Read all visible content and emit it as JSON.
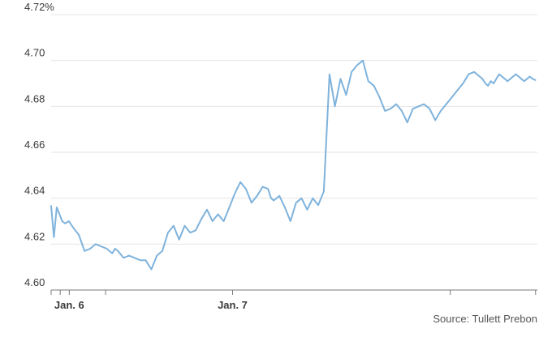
{
  "chart_data": {
    "type": "line",
    "title": "",
    "xlabel": "",
    "ylabel": "",
    "ylim": [
      4.6,
      4.72
    ],
    "yticks": [
      4.6,
      4.62,
      4.64,
      4.66,
      4.68,
      4.7,
      4.72
    ],
    "ytick_labels": [
      "4.60",
      "4.62",
      "4.64",
      "4.66",
      "4.68",
      "4.70",
      "4.72%"
    ],
    "xticks": [
      {
        "label": "Jan. 6",
        "value": 0.1
      },
      {
        "label": "Jan. 7",
        "value": 1.0
      }
    ],
    "xlim": [
      0,
      2.68
    ],
    "grid": true,
    "source": "Source: Tullett Prebon",
    "series_color": "#7fb3dc",
    "series": [
      {
        "x": [
          0.0,
          0.015,
          0.031,
          0.046,
          0.061,
          0.077,
          0.098,
          0.123,
          0.153,
          0.184,
          0.215,
          0.245,
          0.276,
          0.307,
          0.337,
          0.352,
          0.368,
          0.399,
          0.429,
          0.46,
          0.491,
          0.521,
          0.552,
          0.583,
          0.613,
          0.644,
          0.675,
          0.705,
          0.736,
          0.767,
          0.797,
          0.828,
          0.859,
          0.889,
          0.92,
          0.951,
          0.982,
          1.012,
          1.043,
          1.074,
          1.104,
          1.135,
          1.166,
          1.196,
          1.212,
          1.227,
          1.258,
          1.288,
          1.319,
          1.35,
          1.38,
          1.411,
          1.442,
          1.472,
          1.503,
          1.534,
          1.564,
          1.595,
          1.626,
          1.656,
          1.687,
          1.718,
          1.748,
          1.779,
          1.81,
          1.84,
          1.871,
          1.902,
          1.933,
          1.963,
          1.994,
          2.025,
          2.055,
          2.086,
          2.117,
          2.147,
          2.178,
          2.209,
          2.239,
          2.27,
          2.301,
          2.331,
          2.347,
          2.362,
          2.377,
          2.393,
          2.408,
          2.423,
          2.439,
          2.454,
          2.469,
          2.485,
          2.5,
          2.515,
          2.531,
          2.546,
          2.561,
          2.577,
          2.592,
          2.607,
          2.623,
          2.638,
          2.653,
          2.669
        ],
        "values": [
          4.6366,
          4.623,
          4.636,
          4.633,
          4.63,
          4.629,
          4.63,
          4.627,
          4.624,
          4.617,
          4.618,
          4.62,
          4.619,
          4.618,
          4.616,
          4.618,
          4.617,
          4.614,
          4.615,
          4.614,
          4.613,
          4.613,
          4.609,
          4.615,
          4.617,
          4.625,
          4.628,
          4.622,
          4.628,
          4.625,
          4.626,
          4.631,
          4.635,
          4.63,
          4.633,
          4.63,
          4.636,
          4.642,
          4.647,
          4.644,
          4.638,
          4.641,
          4.645,
          4.644,
          4.64,
          4.639,
          4.641,
          4.636,
          4.63,
          4.638,
          4.64,
          4.635,
          4.64,
          4.637,
          4.643,
          4.694,
          4.68,
          4.692,
          4.685,
          4.695,
          4.698,
          4.7,
          4.691,
          4.689,
          4.684,
          4.678,
          4.679,
          4.681,
          4.678,
          4.673,
          4.679,
          4.68,
          4.681,
          4.679,
          4.674,
          4.678,
          4.681,
          4.684,
          4.687,
          4.69,
          4.694,
          4.695,
          4.694,
          4.693,
          4.692,
          4.69,
          4.689,
          4.691,
          4.69,
          4.692,
          4.694,
          4.693,
          4.692,
          4.691,
          4.692,
          4.693,
          4.694,
          4.693,
          4.692,
          4.691,
          4.692,
          4.693,
          4.692,
          4.6915
        ]
      }
    ]
  }
}
